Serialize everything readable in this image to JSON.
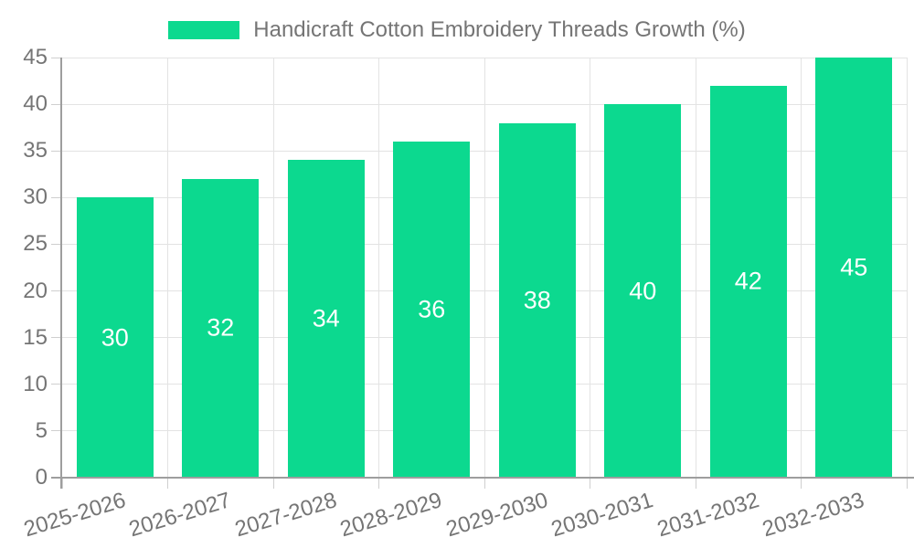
{
  "legend": {
    "label": "Handicraft Cotton Embroidery Threads Growth (%)"
  },
  "chart_data": {
    "type": "bar",
    "title": "Handicraft Cotton Embroidery Threads Growth (%)",
    "categories": [
      "2025-2026",
      "2026-2027",
      "2027-2028",
      "2028-2029",
      "2029-2030",
      "2030-2031",
      "2031-2032",
      "2032-2033"
    ],
    "values": [
      30,
      32,
      34,
      36,
      38,
      40,
      42,
      45
    ],
    "xlabel": "",
    "ylabel": "",
    "ylim": [
      0,
      45
    ],
    "ytick_step": 5,
    "yticks": [
      0,
      5,
      10,
      15,
      20,
      25,
      30,
      35,
      40,
      45
    ],
    "grid": true,
    "legend_position": "top",
    "x_label_rotation_deg": -17,
    "colors": {
      "bar": "#0cd98f",
      "bar_value_label": "#ffffff",
      "tick_text": "#757575",
      "legend_text": "#757575",
      "gridline": "#e3e3e3",
      "tick_mark": "#cfcfcf",
      "axis_line": "#9e9e9e",
      "background": "#ffffff"
    }
  }
}
